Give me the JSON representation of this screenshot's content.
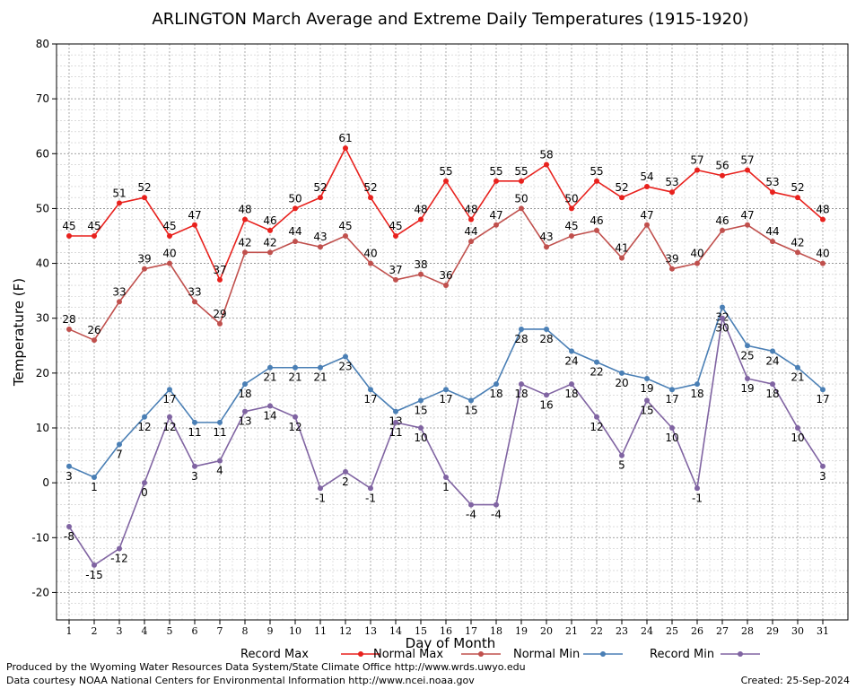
{
  "chart_data": {
    "type": "line",
    "title": "ARLINGTON March Average and Extreme Daily Temperatures (1915-1920)",
    "xlabel": "Day of Month",
    "ylabel": "Temperature (F)",
    "ylim": [
      -25,
      80
    ],
    "yticks": [
      -20,
      -10,
      0,
      10,
      20,
      30,
      40,
      50,
      60,
      70,
      80
    ],
    "x": [
      1,
      2,
      3,
      4,
      5,
      6,
      7,
      8,
      9,
      10,
      11,
      12,
      13,
      14,
      15,
      16,
      17,
      18,
      19,
      20,
      21,
      22,
      23,
      24,
      25,
      26,
      27,
      28,
      29,
      30,
      31
    ],
    "grid": true,
    "legend_position": "bottom",
    "series": [
      {
        "name": "Record Max",
        "color": "#e8211d",
        "values": [
          45,
          45,
          51,
          52,
          45,
          47,
          37,
          48,
          46,
          50,
          52,
          61,
          52,
          45,
          48,
          55,
          48,
          55,
          55,
          58,
          50,
          55,
          52,
          54,
          53,
          57,
          56,
          57,
          53,
          52,
          48
        ]
      },
      {
        "name": "Normal Max",
        "color": "#c0504d",
        "values": [
          28,
          26,
          33,
          39,
          40,
          33,
          29,
          42,
          42,
          44,
          43,
          45,
          40,
          37,
          38,
          36,
          44,
          47,
          50,
          43,
          45,
          46,
          41,
          47,
          39,
          40,
          46,
          47,
          44,
          42,
          40
        ]
      },
      {
        "name": "Normal Min",
        "color": "#4a7fb5",
        "values": [
          3,
          1,
          7,
          12,
          17,
          11,
          11,
          18,
          21,
          21,
          21,
          23,
          17,
          13,
          15,
          17,
          15,
          18,
          28,
          28,
          24,
          22,
          20,
          19,
          17,
          18,
          32,
          25,
          24,
          21,
          17
        ]
      },
      {
        "name": "Record Min",
        "color": "#8064a2",
        "values": [
          -8,
          -15,
          -12,
          0,
          12,
          3,
          4,
          13,
          14,
          12,
          -1,
          2,
          -1,
          11,
          10,
          1,
          -4,
          -4,
          18,
          16,
          18,
          12,
          5,
          15,
          10,
          -1,
          30,
          19,
          18,
          10,
          3
        ]
      }
    ]
  },
  "footer": {
    "produced_by": "Produced by the Wyoming Water Resources Data System/State Climate Office http://www.wrds.uwyo.edu",
    "courtesy": "Data courtesy NOAA National Centers for Environmental Information http://www.ncei.noaa.gov",
    "created": "Created:  25-Sep-2024"
  }
}
